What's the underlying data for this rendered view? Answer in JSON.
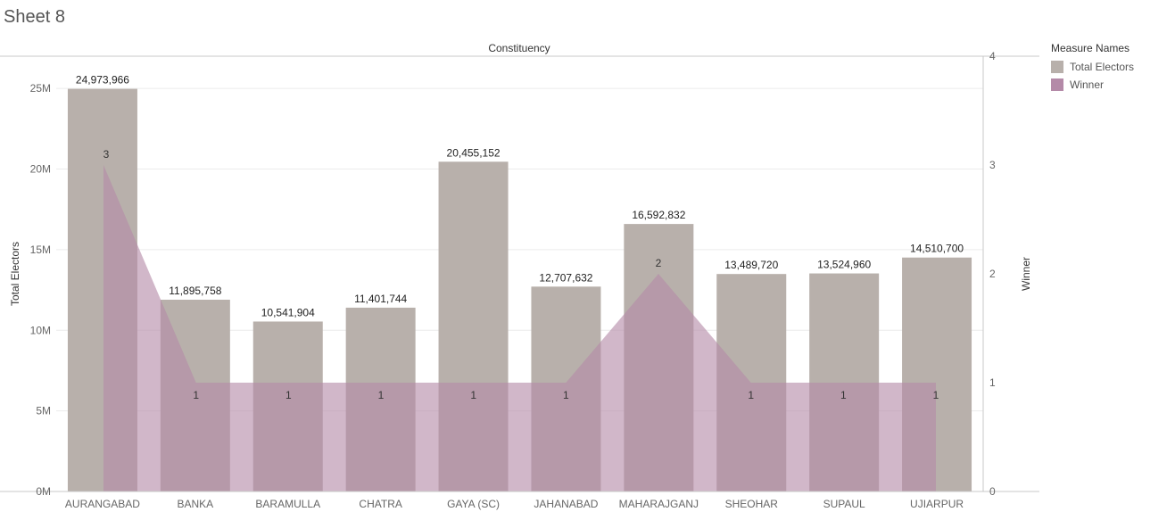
{
  "sheet": {
    "title": "Sheet 8"
  },
  "legend": {
    "title": "Measure Names",
    "items": [
      {
        "label": "Total Electors",
        "color": "#b8b0ab"
      },
      {
        "label": "Winner",
        "color": "#b48aa8"
      }
    ]
  },
  "chart_data": {
    "type": "bar",
    "title": "",
    "column_header": "Constituency",
    "categories": [
      "AURANGABAD",
      "BANKA",
      "BARAMULLA",
      "CHATRA",
      "GAYA (SC)",
      "JAHANABAD",
      "MAHARAJGANJ",
      "SHEOHAR",
      "SUPAUL",
      "UJIARPUR"
    ],
    "series": [
      {
        "name": "Total Electors",
        "type": "bar",
        "axis": "left",
        "color": "#b8b0ab",
        "values": [
          24973966,
          11895758,
          10541904,
          11401744,
          20455152,
          12707632,
          16592832,
          13489720,
          13524960,
          14510700
        ],
        "labels": [
          "24,973,966",
          "11,895,758",
          "10,541,904",
          "11,401,744",
          "20,455,152",
          "12,707,632",
          "16,592,832",
          "13,489,720",
          "13,524,960",
          "14,510,700"
        ]
      },
      {
        "name": "Winner",
        "type": "area",
        "axis": "right",
        "color": "#b48aa8",
        "values": [
          3,
          1,
          1,
          1,
          1,
          1,
          2,
          1,
          1,
          1
        ],
        "labels": [
          "3",
          "1",
          "1",
          "1",
          "1",
          "1",
          "2",
          "1",
          "1",
          "1"
        ]
      }
    ],
    "ylabel_left": "Total Electors",
    "ylabel_right": "Winner",
    "ylim_left": [
      0,
      27000000
    ],
    "ylim_right": [
      0,
      4
    ],
    "yticks_left": [
      {
        "value": 0,
        "label": "0M"
      },
      {
        "value": 5000000,
        "label": "5M"
      },
      {
        "value": 10000000,
        "label": "10M"
      },
      {
        "value": 15000000,
        "label": "15M"
      },
      {
        "value": 20000000,
        "label": "20M"
      },
      {
        "value": 25000000,
        "label": "25M"
      }
    ],
    "yticks_right": [
      {
        "value": 0,
        "label": "0"
      },
      {
        "value": 1,
        "label": "1"
      },
      {
        "value": 2,
        "label": "2"
      },
      {
        "value": 3,
        "label": "3"
      },
      {
        "value": 4,
        "label": "4"
      }
    ],
    "grid": true,
    "legend_position": "right"
  }
}
